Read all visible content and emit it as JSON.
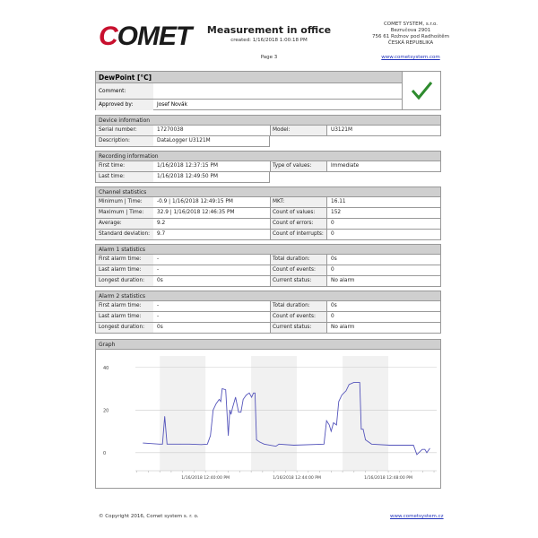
{
  "header": {
    "logo": "COMET",
    "title": "Measurement in office",
    "created": "created:  1/16/2018 1:00:18 PM",
    "page": "Page   3",
    "company": [
      "COMET SYSTEM, s.r.o.",
      "Bezručova 2901",
      "756 61  Rožnov pod Radhoštěm",
      "ČESKÁ REPUBLIKA"
    ],
    "website": "www.cometsystem.com"
  },
  "channel": {
    "title": "DewPoint [°C]",
    "comment_label": "Comment:",
    "comment": "",
    "approved_label": "Approved by:",
    "approved": "Josef Novák",
    "status_icon": "checkmark-icon",
    "status_color": "#2e8b2e"
  },
  "sections": [
    {
      "title": "Device information",
      "rows": [
        [
          "Serial number:",
          "17270038",
          "Model:",
          "U3121M"
        ],
        [
          "Description:",
          "DataLogger U3121M",
          null,
          null
        ]
      ]
    },
    {
      "title": "Recording information",
      "rows": [
        [
          "First time:",
          "1/16/2018 12:37:15 PM",
          "Type of values:",
          "Immediate"
        ],
        [
          "Last time:",
          "1/16/2018 12:49:50 PM",
          null,
          null
        ]
      ]
    },
    {
      "title": "Channel statistics",
      "rows": [
        [
          "Minimum | Time:",
          "-0.9 | 1/16/2018 12:49:15 PM",
          "MKT:",
          "16.11"
        ],
        [
          "Maximum | Time:",
          "32.9 | 1/16/2018 12:46:35 PM",
          "Count of values:",
          "152"
        ],
        [
          "Average:",
          "9.2",
          "Count of errors:",
          "0"
        ],
        [
          "Standard deviation:",
          "9.7",
          "Count of interrupts:",
          "0"
        ]
      ]
    },
    {
      "title": "Alarm 1 statistics",
      "rows": [
        [
          "First alarm time:",
          "-",
          "Total duration:",
          "0s"
        ],
        [
          "Last alarm time:",
          "-",
          "Count of events:",
          "0"
        ],
        [
          "Longest duration:",
          "0s",
          "Current status:",
          "No alarm"
        ]
      ]
    },
    {
      "title": "Alarm 2 statistics",
      "rows": [
        [
          "First alarm time:",
          "-",
          "Total duration:",
          "0s"
        ],
        [
          "Last alarm time:",
          "-",
          "Count of events:",
          "0"
        ],
        [
          "Longest duration:",
          "0s",
          "Current status:",
          "No alarm"
        ]
      ]
    }
  ],
  "graph": {
    "title": "Graph"
  },
  "chart_data": {
    "type": "line",
    "title": "",
    "xlabel": "",
    "ylabel": "",
    "ylim": [
      -8.5,
      42
    ],
    "xlim": [
      "12:36:56",
      "12:50:07"
    ],
    "yticks": [
      "40",
      "20",
      "0"
    ],
    "xticks": [
      "1/16/2018 12:40:00 PM",
      "1/16/2018 12:44:00 PM",
      "1/16/2018 12:48:00 PM"
    ],
    "grid": true,
    "line_color": "#5555bb",
    "points": [
      [
        "12:37:16",
        4.5
      ],
      [
        "12:37:59",
        4
      ],
      [
        "12:38:07",
        4
      ],
      [
        "12:38:13",
        17
      ],
      [
        "12:38:19",
        4
      ],
      [
        "12:38:54",
        4
      ],
      [
        "12:39:18",
        4
      ],
      [
        "12:39:49",
        3.8
      ],
      [
        "12:40:05",
        4
      ],
      [
        "12:40:13",
        8
      ],
      [
        "12:40:20",
        20
      ],
      [
        "12:40:28",
        23
      ],
      [
        "12:40:36",
        25
      ],
      [
        "12:40:40",
        24
      ],
      [
        "12:40:44",
        30
      ],
      [
        "12:40:53",
        29.5
      ],
      [
        "12:41:00",
        8
      ],
      [
        "12:41:04",
        20
      ],
      [
        "12:41:07",
        18
      ],
      [
        "12:41:11",
        21
      ],
      [
        "12:41:19",
        26
      ],
      [
        "12:41:27",
        19
      ],
      [
        "12:41:33",
        19
      ],
      [
        "12:41:39",
        25
      ],
      [
        "12:41:47",
        27
      ],
      [
        "12:41:55",
        28
      ],
      [
        "12:42:01",
        26
      ],
      [
        "12:42:06",
        28
      ],
      [
        "12:42:10",
        28
      ],
      [
        "12:42:14",
        6
      ],
      [
        "12:42:22",
        5
      ],
      [
        "12:42:34",
        4
      ],
      [
        "12:43:05",
        3
      ],
      [
        "12:43:13",
        4
      ],
      [
        "12:43:52",
        3.5
      ],
      [
        "12:45:11",
        4
      ],
      [
        "12:45:18",
        15
      ],
      [
        "12:45:25",
        13
      ],
      [
        "12:45:30",
        10
      ],
      [
        "12:45:36",
        14
      ],
      [
        "12:45:44",
        13
      ],
      [
        "12:45:50",
        24
      ],
      [
        "12:45:58",
        27
      ],
      [
        "12:46:09",
        29
      ],
      [
        "12:46:17",
        32
      ],
      [
        "12:46:29",
        32.9
      ],
      [
        "12:46:45",
        32.9
      ],
      [
        "12:46:49",
        11
      ],
      [
        "12:46:54",
        11
      ],
      [
        "12:47:00",
        6
      ],
      [
        "12:47:16",
        4
      ],
      [
        "12:48:03",
        3.5
      ],
      [
        "12:49:06",
        3.5
      ],
      [
        "12:49:15",
        -0.9
      ],
      [
        "12:49:29",
        1.5
      ],
      [
        "12:49:36",
        1.5
      ],
      [
        "12:49:41",
        0
      ],
      [
        "12:49:49",
        2
      ]
    ]
  },
  "footer": {
    "copyright": "© Copyright 2016, Comet system s. r. o.",
    "website": "www.cometsystem.cz"
  }
}
